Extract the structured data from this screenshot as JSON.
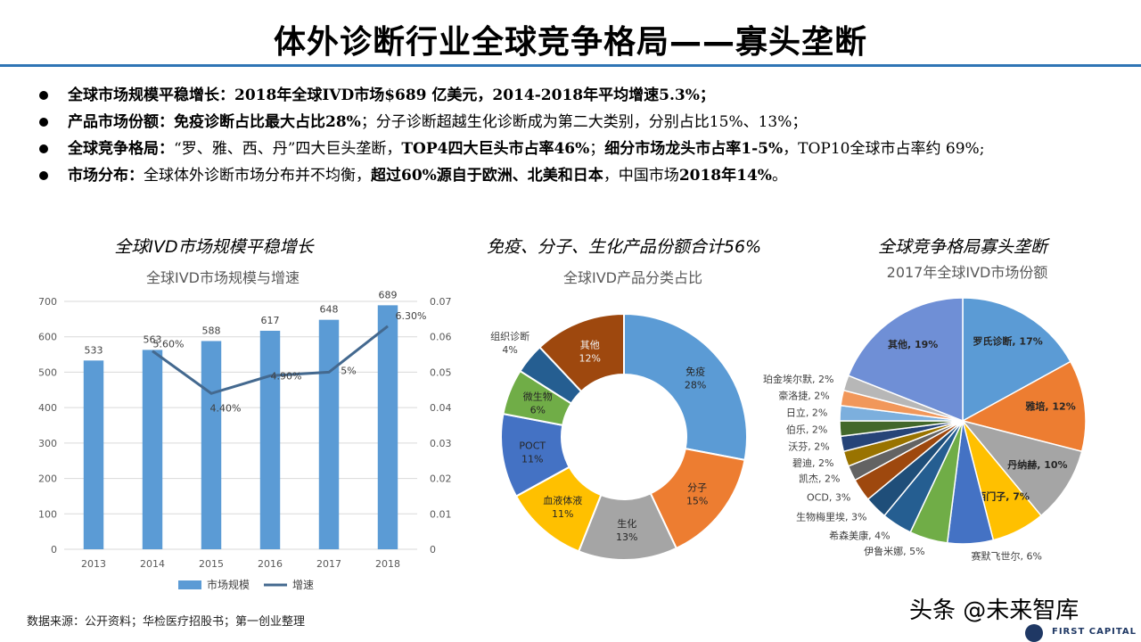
{
  "title": "体外诊断行业全球竞争格局——寡头垄断",
  "bullets": [
    {
      "label": "全球市场规模平稳增长：",
      "text": "2018年全球IVD市场$689 亿美元，2014-2018年平均增速5.3%；"
    },
    {
      "label": "产品市场份额：",
      "strong": "免疫诊断占比最大占比28%",
      "text": "；分子诊断超越生化诊断成为第二大类别，分别占比15%、13%；"
    },
    {
      "label": "全球竞争格局：",
      "text1": "“罗、雅、西、丹”四大巨头垄断，",
      "strong1": "TOP4四大巨头市占率46%",
      "text2": "；",
      "strong2": "细分市场龙头市占率1-5%",
      "text3": "，TOP10全球市占率约 69%;"
    },
    {
      "label": "市场分布：",
      "text1": "全球体外诊断市场分布并不均衡，",
      "strong1": "超过60%源自于欧洲、北美和日本",
      "text2": "，中国市场",
      "strong2": "2018年14%",
      "text3": "。"
    }
  ],
  "panels": {
    "left_title": "全球IVD市场规模平稳增长",
    "mid_title": "免疫、分子、生化产品份额合计56%",
    "right_title": "全球竞争格局寡头垄断"
  },
  "source": "数据来源：公开资料；华检医疗招股书；第一创业整理",
  "watermark": "头条 @未来智库",
  "logo": "FIRST CAPITAL",
  "colors": {
    "accent": "#2f75b5",
    "bar": "#5b9bd5",
    "line": "#44698f"
  },
  "chart_data": [
    {
      "type": "bar",
      "title": "全球IVD市场规模与增速",
      "categories": [
        "2013",
        "2014",
        "2015",
        "2016",
        "2017",
        "2018"
      ],
      "series": [
        {
          "name": "市场规模",
          "type": "bar",
          "values": [
            533,
            563,
            588,
            617,
            648,
            689
          ],
          "labels": [
            "533",
            "563",
            "588",
            "617",
            "648",
            "689"
          ]
        },
        {
          "name": "增速",
          "type": "line",
          "axis": "right",
          "values": [
            null,
            0.056,
            0.044,
            0.049,
            0.05,
            0.063
          ],
          "labels": [
            "",
            "5.60%",
            "4.40%",
            "4.90%",
            "5%",
            "6.30%"
          ]
        }
      ],
      "ylim": [
        0,
        700
      ],
      "yticks": [
        "0",
        "100",
        "200",
        "300",
        "400",
        "500",
        "600",
        "700"
      ],
      "y2lim": [
        0,
        0.07
      ],
      "y2ticks": [
        "0",
        "0.01",
        "0.02",
        "0.03",
        "0.04",
        "0.05",
        "0.06",
        "0.07"
      ],
      "legend": "bottom"
    },
    {
      "type": "pie",
      "title": "全球IVD产品分类占比",
      "donut": true,
      "slices": [
        {
          "name": "免疫",
          "value": 28,
          "label": "28%",
          "color": "#5b9bd5"
        },
        {
          "name": "分子",
          "value": 15,
          "label": "15%",
          "color": "#ed7d31"
        },
        {
          "name": "生化",
          "value": 13,
          "label": "13%",
          "color": "#a5a5a5"
        },
        {
          "name": "血液体液",
          "value": 11,
          "label": "11%",
          "color": "#ffc000"
        },
        {
          "name": "POCT",
          "value": 11,
          "label": "11%",
          "color": "#4472c4"
        },
        {
          "name": "微生物",
          "value": 6,
          "label": "6%",
          "color": "#70ad47"
        },
        {
          "name": "组织诊断",
          "value": 4,
          "label": "4%",
          "color": "#255e91"
        },
        {
          "name": "其他",
          "value": 12,
          "label": "12%",
          "color": "#9e480e"
        }
      ]
    },
    {
      "type": "pie",
      "title": "2017年全球IVD市场份额",
      "slices": [
        {
          "name": "罗氏诊断",
          "value": 17,
          "label": "罗氏诊断, 17%",
          "color": "#5b9bd5"
        },
        {
          "name": "雅培",
          "value": 12,
          "label": "雅培, 12%",
          "color": "#ed7d31"
        },
        {
          "name": "丹纳赫",
          "value": 10,
          "label": "丹纳赫, 10%",
          "color": "#a5a5a5"
        },
        {
          "name": "西门子",
          "value": 7,
          "label": "西门子, 7%",
          "color": "#ffc000"
        },
        {
          "name": "赛默飞世尔",
          "value": 6,
          "label": "赛默飞世尔, 6%",
          "color": "#4472c4"
        },
        {
          "name": "伊鲁米娜",
          "value": 5,
          "label": "伊鲁米娜, 5%",
          "color": "#70ad47"
        },
        {
          "name": "希森美康",
          "value": 4,
          "label": "希森美康, 4%",
          "color": "#255e91"
        },
        {
          "name": "生物梅里埃",
          "value": 3,
          "label": "生物梅里埃, 3%",
          "color": "#1f4e79"
        },
        {
          "name": "OCD",
          "value": 3,
          "label": "OCD, 3%",
          "color": "#9e480e"
        },
        {
          "name": "凯杰",
          "value": 2,
          "label": "凯杰, 2%",
          "color": "#636363"
        },
        {
          "name": "碧迪",
          "value": 2,
          "label": "碧迪, 2%",
          "color": "#997300"
        },
        {
          "name": "沃芬",
          "value": 2,
          "label": "沃芬, 2%",
          "color": "#264478"
        },
        {
          "name": "伯乐",
          "value": 2,
          "label": "伯乐, 2%",
          "color": "#43682b"
        },
        {
          "name": "日立",
          "value": 2,
          "label": "日立, 2%",
          "color": "#7cafdd"
        },
        {
          "name": "豪洛捷",
          "value": 2,
          "label": "豪洛捷, 2%",
          "color": "#f1975a"
        },
        {
          "name": "珀金埃尔默",
          "value": 2,
          "label": "珀金埃尔默, 2%",
          "color": "#b7b7b7"
        },
        {
          "name": "其他",
          "value": 19,
          "label": "其他, 19%",
          "color": "#6f8fd6"
        }
      ]
    }
  ]
}
